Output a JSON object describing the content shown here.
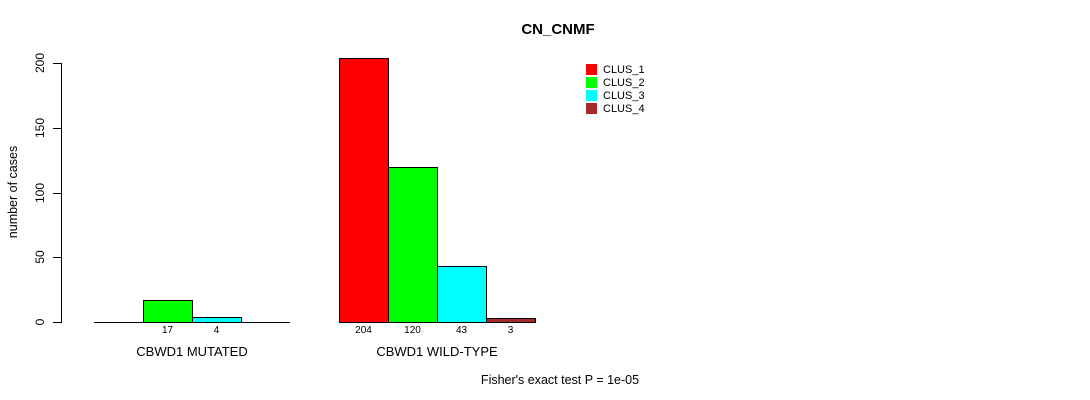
{
  "title": "CN_CNMF",
  "y_axis": {
    "label": "number of cases"
  },
  "footer": "Fisher's exact test P = 1e-05",
  "chart_data": {
    "type": "bar",
    "title": "CN_CNMF",
    "xlabel": "",
    "ylabel": "number of cases",
    "categories": [
      "CBWD1 MUTATED",
      "CBWD1 WILD-TYPE"
    ],
    "series": [
      {
        "name": "CLUS_1",
        "color": "#FF0000",
        "values": [
          0,
          204
        ]
      },
      {
        "name": "CLUS_2",
        "color": "#00FF00",
        "values": [
          17,
          120
        ]
      },
      {
        "name": "CLUS_3",
        "color": "#00FFFF",
        "values": [
          4,
          43
        ]
      },
      {
        "name": "CLUS_4",
        "color": "#A52A2A",
        "values": [
          0,
          3
        ]
      }
    ],
    "bar_value_labels": [
      [
        "",
        "17",
        "4",
        ""
      ],
      [
        "204",
        "120",
        "43",
        "3"
      ]
    ],
    "yticks": [
      0,
      50,
      100,
      150,
      200
    ],
    "ylim": [
      0,
      200
    ],
    "grid": false,
    "legend_position": "top-right",
    "legend": [
      {
        "label": "CLUS_1",
        "color": "#FF0000"
      },
      {
        "label": "CLUS_2",
        "color": "#00FF00"
      },
      {
        "label": "CLUS_3",
        "color": "#00FFFF"
      },
      {
        "label": "CLUS_4",
        "color": "#A52A2A"
      }
    ],
    "annotation": "Fisher's exact test P = 1e-05"
  }
}
